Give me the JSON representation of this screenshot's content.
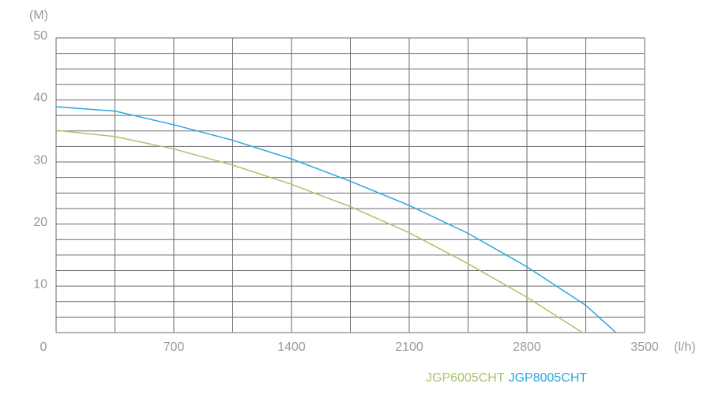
{
  "chart_data": {
    "type": "line",
    "y_label": "(M)",
    "x_label": "(l/h)",
    "xlim": [
      0,
      3500
    ],
    "xticks": [
      0,
      700,
      1400,
      2100,
      2800,
      3500
    ],
    "xgrid": [
      0,
      350,
      700,
      1050,
      1400,
      1750,
      2100,
      2450,
      2800,
      3150,
      3500
    ],
    "ylim": [
      2.5,
      50
    ],
    "yticks": [
      10,
      20,
      30,
      40,
      50
    ],
    "ygrid": [
      2.5,
      5,
      7.5,
      10,
      12.5,
      15,
      17.5,
      20,
      22.5,
      25,
      27.5,
      30,
      32.5,
      35,
      37.5,
      40,
      42.5,
      45,
      47.5,
      50
    ],
    "grid": true,
    "series": [
      {
        "name": "JGP6005CHT",
        "color": "#a8c46a",
        "x": [
          0,
          350,
          700,
          1050,
          1400,
          1750,
          2100,
          2450,
          2800,
          3130
        ],
        "values": [
          35.1,
          34.1,
          32.1,
          29.5,
          26.4,
          22.8,
          18.6,
          13.6,
          8.2,
          2.5
        ]
      },
      {
        "name": "JGP8005CHT",
        "color": "#2aa8e0",
        "x": [
          0,
          350,
          700,
          1050,
          1400,
          1750,
          2100,
          2450,
          2800,
          3150,
          3325
        ],
        "values": [
          38.9,
          38.2,
          36.0,
          33.5,
          30.5,
          26.9,
          23.0,
          18.5,
          13.1,
          6.9,
          2.6
        ]
      }
    ]
  }
}
